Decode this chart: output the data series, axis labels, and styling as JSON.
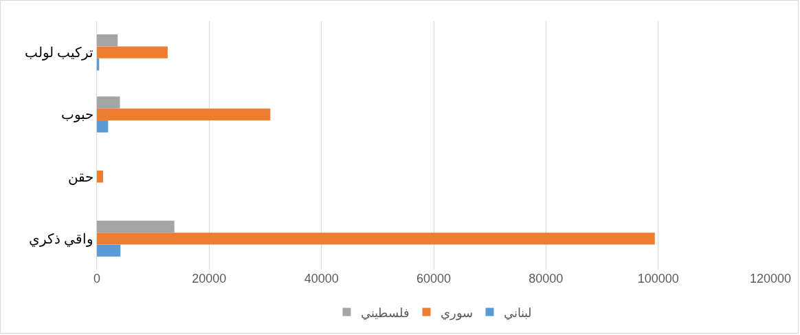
{
  "chart_data": {
    "type": "bar",
    "orientation": "horizontal",
    "categories": [
      "تركيب لولب",
      "حبوب",
      "حقن",
      "واقي ذكري"
    ],
    "series": [
      {
        "name": "لبناني",
        "color": "#5b9bd5",
        "values": [
          400,
          2000,
          null,
          4200
        ]
      },
      {
        "name": "سوري",
        "color": "#ed7d31",
        "values": [
          12600,
          30900,
          1100,
          99400
        ]
      },
      {
        "name": "فلسطيني",
        "color": "#a5a5a5",
        "values": [
          3700,
          4100,
          null,
          13800
        ]
      }
    ],
    "xlim": [
      0,
      120000
    ],
    "xticks": [
      0,
      20000,
      40000,
      60000,
      80000,
      100000,
      120000
    ],
    "grid": "x",
    "legend": "bottom"
  }
}
